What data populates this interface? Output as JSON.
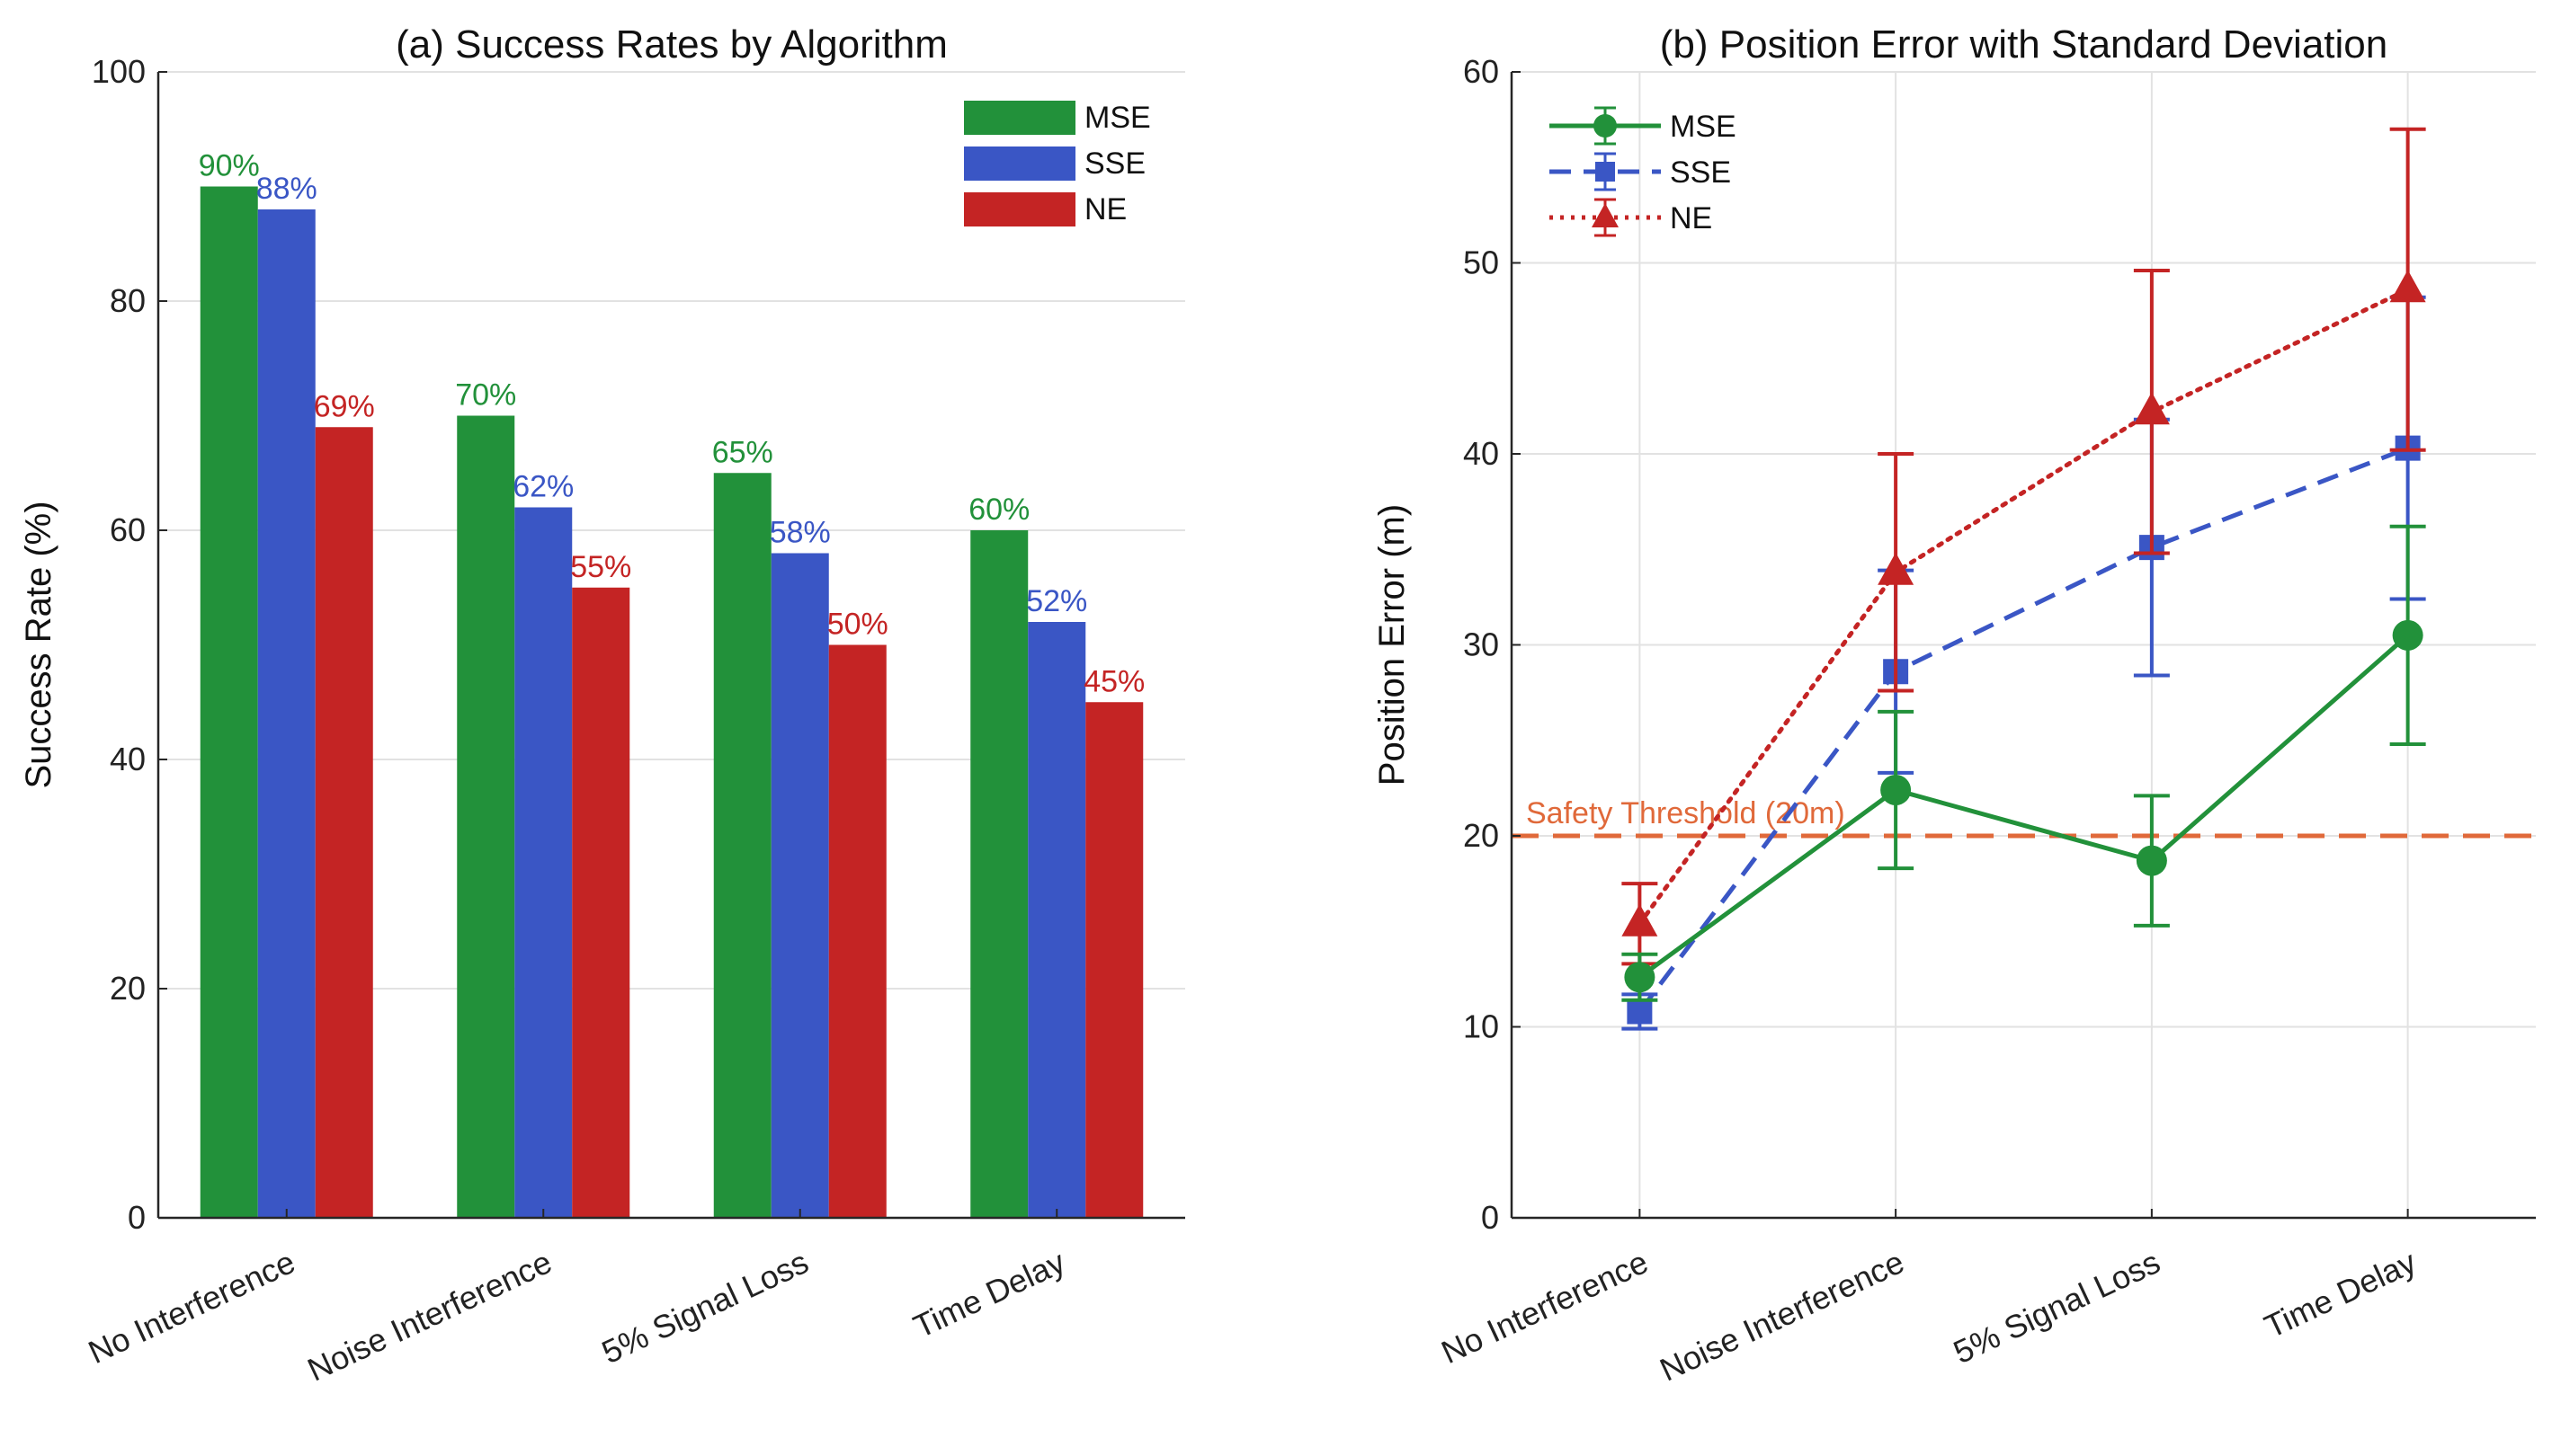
{
  "chart_data": [
    {
      "type": "bar",
      "title": "(a) Success Rates by Algorithm",
      "xlabel": "",
      "ylabel": "Success Rate (%)",
      "ylim": [
        0,
        100
      ],
      "yticks": [
        0,
        20,
        40,
        60,
        80,
        100
      ],
      "grid": true,
      "legend_position": "top-right",
      "categories": [
        "No Interference",
        "Noise Interference",
        "5% Signal Loss",
        "Time Delay"
      ],
      "series": [
        {
          "name": "MSE",
          "color": "#22913a",
          "values": [
            90,
            70,
            65,
            60
          ],
          "labels": [
            "90%",
            "70%",
            "65%",
            "60%"
          ]
        },
        {
          "name": "SSE",
          "color": "#3a56c5",
          "values": [
            88,
            62,
            58,
            52
          ],
          "labels": [
            "88%",
            "62%",
            "58%",
            "52%"
          ]
        },
        {
          "name": "NE",
          "color": "#c42424",
          "values": [
            69,
            55,
            50,
            45
          ],
          "labels": [
            "69%",
            "55%",
            "50%",
            "45%"
          ]
        }
      ]
    },
    {
      "type": "line",
      "title": "(b) Position Error with Standard Deviation",
      "xlabel": "",
      "ylabel": "Position Error (m)",
      "ylim": [
        0,
        60
      ],
      "yticks": [
        0,
        10,
        20,
        30,
        40,
        50,
        60
      ],
      "grid": true,
      "legend_position": "top-left",
      "categories": [
        "No Interference",
        "Noise Interference",
        "5% Signal Loss",
        "Time Delay"
      ],
      "series": [
        {
          "name": "MSE",
          "color": "#22913a",
          "line_style": "solid",
          "marker": "circle",
          "values": [
            12.6,
            22.4,
            18.7,
            30.5
          ],
          "std": [
            1.2,
            4.1,
            3.4,
            5.7
          ]
        },
        {
          "name": "SSE",
          "color": "#3a56c5",
          "line_style": "dashed",
          "marker": "square",
          "values": [
            10.8,
            28.6,
            35.1,
            40.3
          ],
          "std": [
            0.9,
            5.3,
            6.7,
            7.9
          ]
        },
        {
          "name": "NE",
          "color": "#c42424",
          "line_style": "dotted",
          "marker": "triangle",
          "values": [
            15.4,
            33.8,
            42.2,
            48.6
          ],
          "std": [
            2.1,
            6.2,
            7.4,
            8.4
          ]
        }
      ],
      "threshold": {
        "value": 20,
        "label": "Safety Threshold (20m)",
        "color": "#e0693a"
      }
    }
  ]
}
